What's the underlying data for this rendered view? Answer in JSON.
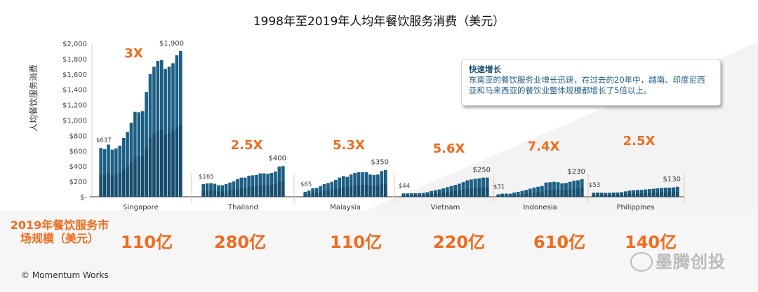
{
  "title": "1998年至2019年人均年餐饮服务消费（美元）",
  "callout": {
    "heading": "快速增长",
    "body": "东南亚的餐饮服务业增长迅速，在过去的20年中，越南、印度尼西亚和马来西亚的餐饮业整体规模都增长了5倍以上。"
  },
  "bottom_label": "2019年餐饮服务市场规模（美元）",
  "copyright": "© Momentum Works",
  "watermark": "墨腾创投",
  "colors": {
    "bar": "#1d5f84",
    "bar_dark": "#123f5c",
    "accent": "#f26b1d"
  },
  "chart_data": {
    "type": "bar",
    "title": "1998年至2019年人均年餐饮服务消费（美元）",
    "ylabel": "人均餐饮服务消费",
    "ylim": [
      0,
      2000
    ],
    "yticks": [
      "$-",
      "$200",
      "$400",
      "$600",
      "$800",
      "$1,000",
      "$1,200",
      "$1,400",
      "$1,600",
      "$1,800",
      "$2,000"
    ],
    "grid": false,
    "years": [
      1998,
      2019
    ],
    "series": [
      {
        "name": "Singapore",
        "multiplier": "3X",
        "start_label": "$637",
        "end_label": "$1,900",
        "market_size": "110亿",
        "values": [
          637,
          620,
          680,
          615,
          630,
          667,
          767,
          846,
          965,
          1108,
          1102,
          1117,
          1367,
          1601,
          1696,
          1772,
          1781,
          1668,
          1696,
          1741,
          1845,
          1900
        ]
      },
      {
        "name": "Thailand",
        "multiplier": "2.5X",
        "start_label": "$165",
        "end_label": "$400",
        "market_size": "280亿",
        "values": [
          165,
          175,
          178,
          170,
          150,
          150,
          165,
          185,
          200,
          230,
          250,
          250,
          275,
          280,
          285,
          305,
          305,
          300,
          310,
          330,
          395,
          400
        ]
      },
      {
        "name": "Malaysia",
        "multiplier": "5.3X",
        "start_label": "$65",
        "end_label": "$350",
        "market_size": "110亿",
        "values": [
          65,
          80,
          110,
          115,
          140,
          165,
          180,
          195,
          220,
          250,
          270,
          260,
          290,
          310,
          320,
          320,
          320,
          290,
          285,
          290,
          335,
          350
        ]
      },
      {
        "name": "Vietnam",
        "multiplier": "5.6X",
        "start_label": "$44",
        "end_label": "$250",
        "market_size": "220亿",
        "values": [
          44,
          44,
          45,
          46,
          48,
          50,
          60,
          75,
          85,
          95,
          110,
          125,
          140,
          155,
          170,
          190,
          215,
          225,
          235,
          240,
          250,
          250
        ]
      },
      {
        "name": "Indonesia",
        "multiplier": "7.4X",
        "start_label": "$31",
        "end_label": "$230",
        "market_size": "610亿",
        "values": [
          31,
          40,
          42,
          40,
          55,
          65,
          75,
          90,
          105,
          120,
          130,
          140,
          185,
          190,
          195,
          190,
          175,
          180,
          195,
          210,
          215,
          230
        ]
      },
      {
        "name": "Philippines",
        "multiplier": "2.5X",
        "start_label": "$53",
        "end_label": "$130",
        "market_size": "140亿",
        "values": [
          53,
          55,
          54,
          52,
          52,
          55,
          56,
          60,
          70,
          80,
          85,
          88,
          90,
          95,
          100,
          105,
          110,
          115,
          118,
          120,
          122,
          130
        ]
      }
    ]
  }
}
